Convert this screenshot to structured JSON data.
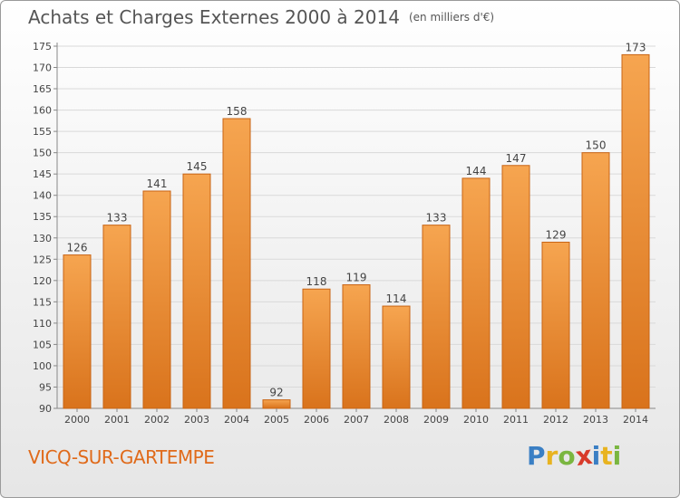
{
  "title": "Achats et Charges Externes 2000 à 2014",
  "unit": "(en milliers d'€)",
  "commune": "VICQ-SUR-GARTEMPE",
  "brand": {
    "letters": [
      "P",
      "r",
      "o",
      "x",
      "i",
      "t",
      "i"
    ],
    "colors": [
      "#3a7fc4",
      "#e8b320",
      "#7ab640",
      "#d83a2a",
      "#3a7fc4",
      "#e8b320",
      "#7ab640"
    ]
  },
  "chart_data": {
    "type": "bar",
    "title": "Achats et Charges Externes 2000 à 2014",
    "categories": [
      "2000",
      "2001",
      "2002",
      "2003",
      "2004",
      "2005",
      "2006",
      "2007",
      "2008",
      "2009",
      "2010",
      "2011",
      "2012",
      "2013",
      "2014"
    ],
    "values": [
      126,
      133,
      141,
      145,
      158,
      92,
      118,
      119,
      114,
      133,
      144,
      147,
      129,
      150,
      173
    ],
    "ylim": [
      90,
      175
    ],
    "yticks": [
      90,
      95,
      100,
      105,
      110,
      115,
      120,
      125,
      130,
      135,
      140,
      145,
      150,
      155,
      160,
      165,
      170,
      175
    ],
    "grid": true,
    "bar_color_top": "#f6a550",
    "bar_color_bottom": "#d9731c",
    "bar_edge": "#c86414"
  }
}
